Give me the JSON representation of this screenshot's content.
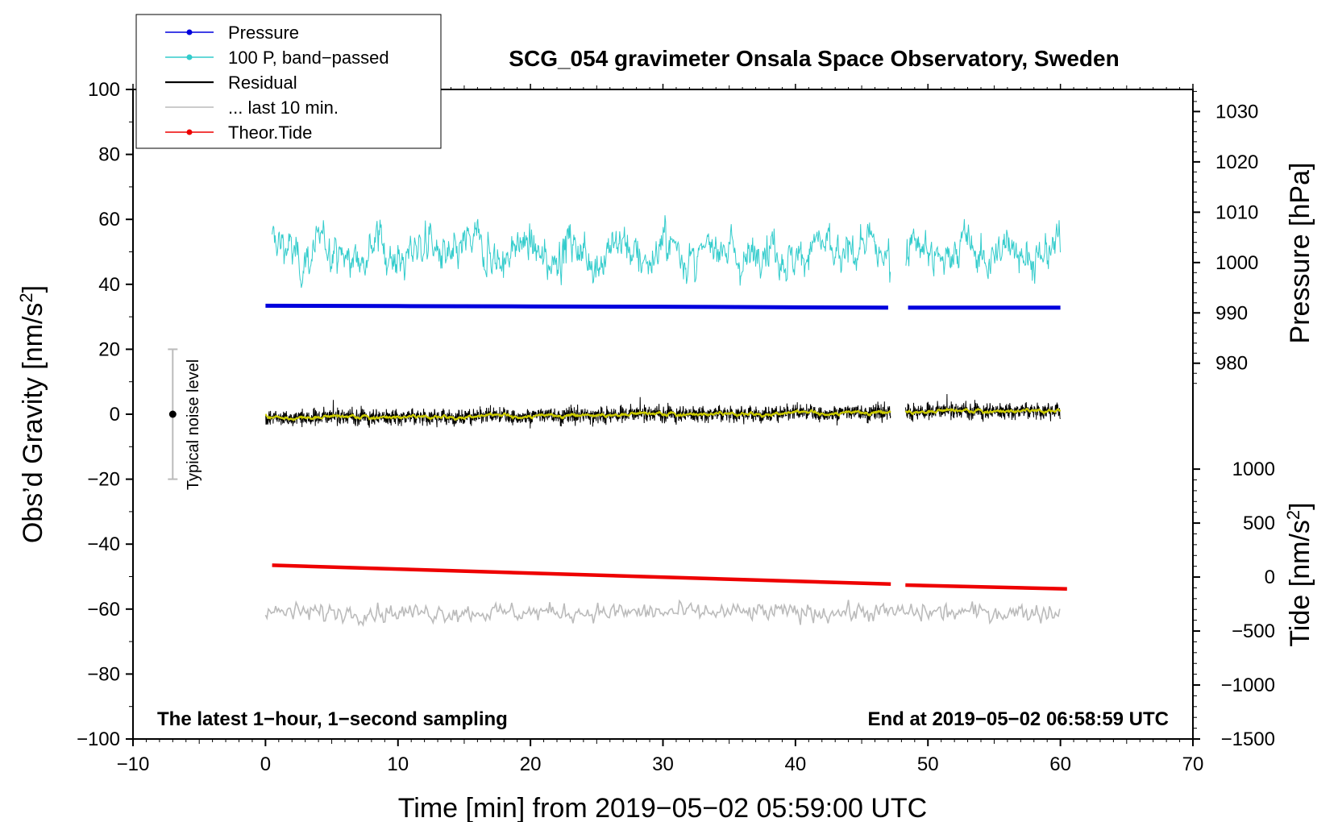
{
  "chart_data": {
    "type": "line",
    "title": "SCG_054 gravimeter Onsala Space Observatory, Sweden",
    "xlabel": "Time [min] from 2019−05−02 05:59:00 UTC",
    "ylabel": "Obs’d Gravity [nm/s",
    "ylabel_sup": "2",
    "ylabel_end": "]",
    "y2label": "Pressure [hPa]",
    "y3label": "Tide [nm/s",
    "y3label_sup": "2",
    "y3label_end": "]",
    "xlim": [
      -10,
      70
    ],
    "ylim": [
      -100,
      100
    ],
    "x_ticks": [
      -10,
      0,
      10,
      20,
      30,
      40,
      50,
      60,
      70
    ],
    "x_tick_labels": [
      "−10",
      "0",
      "10",
      "20",
      "30",
      "40",
      "50",
      "60",
      "70"
    ],
    "y_ticks": [
      100,
      80,
      60,
      40,
      20,
      0,
      -20,
      -40,
      -60,
      -80,
      -100
    ],
    "y_tick_labels": [
      "100",
      "80",
      "60",
      "40",
      "20",
      "0",
      "−20",
      "−40",
      "−60",
      "−80",
      "−100"
    ],
    "pressure_ticks": [
      1030,
      1020,
      1010,
      1000,
      990,
      980
    ],
    "pressure_tick_labels": [
      "1030",
      "1020",
      "1010",
      "1000",
      "990",
      "980"
    ],
    "pressure_axis_map": {
      "value_a": 1000,
      "gravity_a": 46.7,
      "value_b": 990,
      "gravity_b": 31.2
    },
    "tide_ticks": [
      1000,
      500,
      0,
      -500,
      -1000,
      -1500
    ],
    "tide_tick_labels": [
      "1000",
      "500",
      "0",
      "−500",
      "−1000",
      "−1500"
    ],
    "tide_axis_map": {
      "value_a": 1000,
      "gravity_a": -16.9,
      "value_b": -1500,
      "gravity_b": -100
    },
    "gap_minutes": [
      47.2,
      48.3
    ],
    "series": [
      {
        "name": "Pressure",
        "color": "#0000dd",
        "legend_marker": true,
        "x": [
          0,
          10,
          20,
          30,
          40,
          47,
          48.5,
          55,
          60
        ],
        "y": [
          33.4,
          33.3,
          33.2,
          33.1,
          32.9,
          32.8,
          32.8,
          32.8,
          32.8
        ]
      },
      {
        "name": "100 P, band−passed",
        "color": "#33cccc",
        "legend_marker": true,
        "x_start": 0.5,
        "x_end": 60,
        "baseline": 50,
        "amplitude_range": [
          35,
          66
        ]
      },
      {
        "name": "Residual",
        "color": "#000000",
        "legend_marker": false,
        "x_start": 0,
        "x_end": 60,
        "baseline": 0,
        "amplitude_range": [
          -8,
          11
        ]
      },
      {
        "name": "... last 10 min.",
        "color": "#bbbbbb",
        "legend_marker": false,
        "x_start": 0,
        "x_end": 60,
        "baseline": -61,
        "amplitude_range": [
          -69,
          -54
        ]
      },
      {
        "name": "Theor.Tide",
        "color": "#ee0000",
        "legend_marker": true,
        "x": [
          0.5,
          47.2,
          48.3,
          60.5
        ],
        "y": [
          -46.5,
          -52.3,
          -52.6,
          -53.8
        ]
      }
    ],
    "smoothed_residual_color": "#cccc00",
    "noise_bar": {
      "label": "Typical noise level",
      "x": -7,
      "y_center": 0,
      "y_low": -20,
      "y_high": 20
    },
    "annotations": {
      "left": "The latest 1−hour, 1−second sampling",
      "right": "End at 2019−05−02 06:58:59 UTC"
    },
    "legend_position": "top-left"
  }
}
